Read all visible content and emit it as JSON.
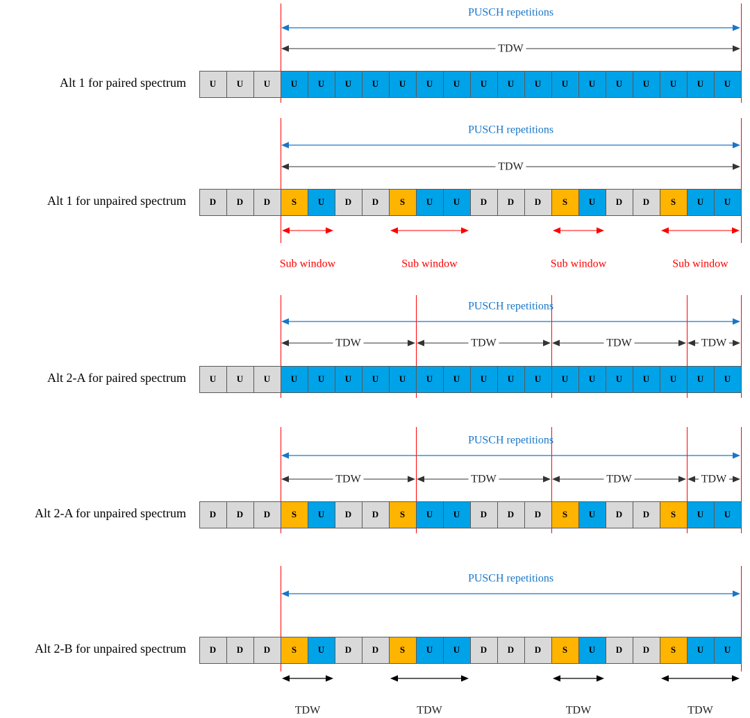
{
  "colors": {
    "U_uplink": "#00a2e8",
    "S_special": "#ffb400",
    "gray": "#d9d9d9",
    "border": "#595959",
    "blue_text": "#1976c8",
    "red": "#ff0000",
    "black_arrow": "#333333"
  },
  "pusch_label": "PUSCH repetitions",
  "tdw_label": "TDW",
  "sub_window_label": "Sub window",
  "rows": [
    {
      "label": "Alt 1 for paired spectrum",
      "slots": [
        "U",
        "U",
        "U",
        "U",
        "U",
        "U",
        "U",
        "U",
        "U",
        "U",
        "U",
        "U",
        "U",
        "U",
        "U",
        "U",
        "U",
        "U",
        "U",
        "U"
      ],
      "blue": [
        3,
        4,
        5,
        6,
        7,
        8,
        9,
        10,
        11,
        12,
        13,
        14,
        15,
        16,
        17,
        18,
        19
      ],
      "tdw": [
        [
          3,
          20
        ]
      ],
      "tdw_style": "span",
      "sub": []
    },
    {
      "label": "Alt 1 for unpaired spectrum",
      "slots": [
        "D",
        "D",
        "D",
        "S",
        "U",
        "D",
        "D",
        "S",
        "U",
        "U",
        "D",
        "D",
        "D",
        "S",
        "U",
        "D",
        "D",
        "S",
        "U",
        "U"
      ],
      "blue": [],
      "tdw": [
        [
          3,
          20
        ]
      ],
      "tdw_style": "span",
      "sub": [
        [
          3,
          5
        ],
        [
          7,
          10
        ],
        [
          13,
          15
        ],
        [
          17,
          20
        ]
      ]
    },
    {
      "label": "Alt 2-A for paired spectrum",
      "slots": [
        "U",
        "U",
        "U",
        "U",
        "U",
        "U",
        "U",
        "U",
        "U",
        "U",
        "U",
        "U",
        "U",
        "U",
        "U",
        "U",
        "U",
        "U",
        "U",
        "U"
      ],
      "blue": [
        3,
        4,
        5,
        6,
        7,
        8,
        9,
        10,
        11,
        12,
        13,
        14,
        15,
        16,
        17,
        18,
        19
      ],
      "tdw": [
        [
          3,
          8
        ],
        [
          8,
          13
        ],
        [
          13,
          18
        ],
        [
          18,
          20
        ]
      ],
      "tdw_style": "span",
      "sub": []
    },
    {
      "label": "Alt 2-A for unpaired spectrum",
      "slots": [
        "D",
        "D",
        "D",
        "S",
        "U",
        "D",
        "D",
        "S",
        "U",
        "U",
        "D",
        "D",
        "D",
        "S",
        "U",
        "D",
        "D",
        "S",
        "U",
        "U"
      ],
      "blue": [],
      "tdw": [
        [
          3,
          8
        ],
        [
          8,
          13
        ],
        [
          13,
          18
        ],
        [
          18,
          20
        ]
      ],
      "tdw_style": "span",
      "sub": []
    },
    {
      "label": "Alt 2-B for unpaired spectrum",
      "slots": [
        "D",
        "D",
        "D",
        "S",
        "U",
        "D",
        "D",
        "S",
        "U",
        "U",
        "D",
        "D",
        "D",
        "S",
        "U",
        "D",
        "D",
        "S",
        "U",
        "U"
      ],
      "blue": [],
      "tdw": [
        [
          3,
          5
        ],
        [
          7,
          10
        ],
        [
          13,
          15
        ],
        [
          17,
          20
        ]
      ],
      "tdw_style": "below",
      "sub": []
    }
  ]
}
